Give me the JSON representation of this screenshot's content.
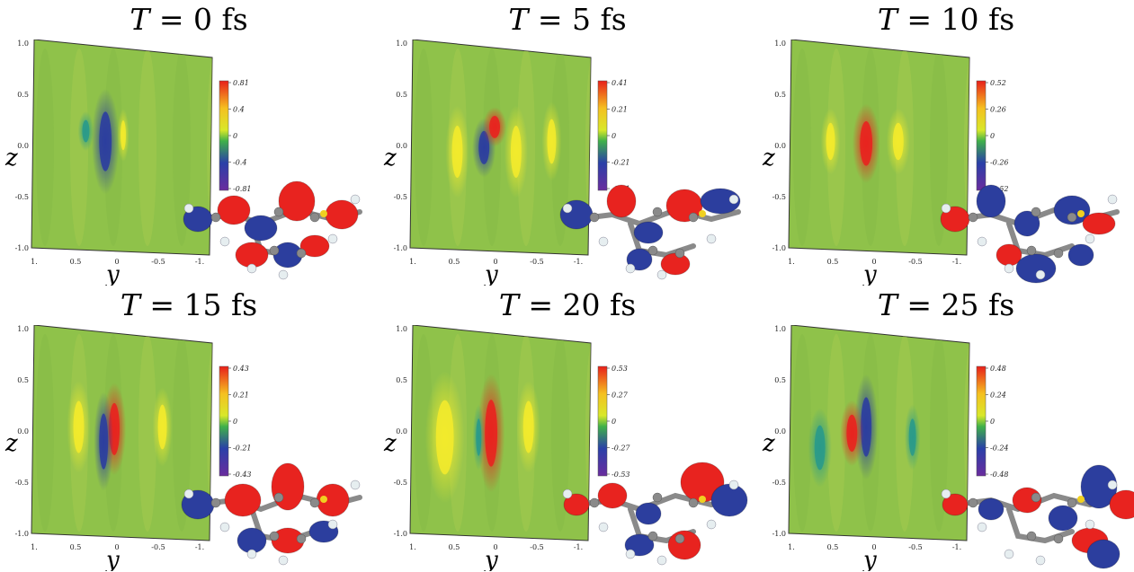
{
  "axes": {
    "vertical_label": "z",
    "horizontal_label": "y",
    "z_ticks": [
      "1.0",
      "0.5",
      "0.0",
      "-0.5",
      "-1.0"
    ],
    "y_ticks": [
      "1.",
      "0.5",
      "0",
      "-0.5",
      "-1."
    ]
  },
  "panels": [
    {
      "title_var": "T",
      "title_rest": " = 0 fs",
      "colorbar": [
        "0.81",
        "0.4",
        "0",
        "-0.4",
        "-0.81"
      ]
    },
    {
      "title_var": "T",
      "title_rest": " = 5 fs",
      "colorbar": [
        "0.41",
        "0.21",
        "0",
        "-0.21",
        "-0.41"
      ]
    },
    {
      "title_var": "T",
      "title_rest": " = 10 fs",
      "colorbar": [
        "0.52",
        "0.26",
        "0",
        "-0.26",
        "-0.52"
      ]
    },
    {
      "title_var": "T",
      "title_rest": " = 15 fs",
      "colorbar": [
        "0.43",
        "0.21",
        "0",
        "-0.21",
        "-0.43"
      ]
    },
    {
      "title_var": "T",
      "title_rest": " = 20 fs",
      "colorbar": [
        "0.53",
        "0.27",
        "0",
        "-0.27",
        "-0.53"
      ]
    },
    {
      "title_var": "T",
      "title_rest": " = 25 fs",
      "colorbar": [
        "0.48",
        "0.24",
        "0",
        "-0.24",
        "-0.48"
      ]
    }
  ],
  "colors": {
    "background_field": "#8fc24a",
    "positive": "#e8231f",
    "negative": "#2c3e9e",
    "mid": "#f2ea2c",
    "carbon": "#8a8a8a",
    "hydrogen": "#e6eef0",
    "sulfur": "#f0d020"
  }
}
